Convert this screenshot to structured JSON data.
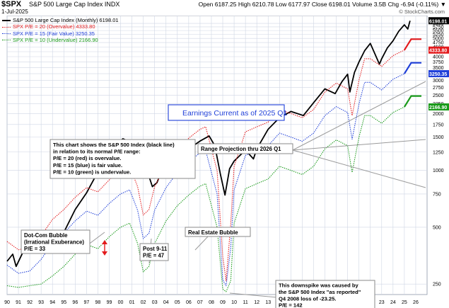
{
  "header": {
    "symbol": "$SPX",
    "index_name": "S&P 500 Large Cap Index INDX",
    "date": "1-Jul-2025",
    "ohlc": "Open 6187.25  High 6210.78  Low 6177.97  Close 6198.01  Volume 3.5B  Chg -6.94 (-0.11%) ▼",
    "copyright": "© StockCharts.com"
  },
  "legend": [
    {
      "text": "S&P 500 Large Cap Index (Monthly) 6198.01",
      "color": "#000000",
      "style": "solid"
    },
    {
      "text": "SPX P/E = 20 (Overvalue) 4333.80",
      "color": "#e31a1c",
      "style": "dotted"
    },
    {
      "text": "SPX P/E = 15 (Fair Value) 3250.35",
      "color": "#1f3fd8",
      "style": "dotted"
    },
    {
      "text": "SPX P/E = 10 (Undervalue) 2166.90",
      "color": "#1a9a1a",
      "style": "dotted"
    }
  ],
  "colors": {
    "price": "#000000",
    "overvalue": "#e31a1c",
    "fair": "#1f3fd8",
    "undervalue": "#1a9a1a",
    "grid": "#cfd6e4",
    "last_price_tag": "#000000",
    "red_tag": "#e31a1c",
    "blue_tag": "#1f3fd8",
    "green_tag": "#1a9a1a"
  },
  "chart_data": {
    "type": "line",
    "y_scale": "log",
    "ylim": [
      220,
      6600
    ],
    "xlim": [
      1990.0,
      2027.0
    ],
    "y_ticks": [
      250,
      500,
      750,
      1000,
      1250,
      1500,
      1750,
      2000,
      2250,
      2500,
      2750,
      3000,
      3250,
      3500,
      3750,
      4000,
      4250,
      4500,
      4750,
      5000,
      5250,
      5500,
      5750,
      6000
    ],
    "y_tick_labels": [
      "250",
      "500",
      "750",
      "1000",
      "1250",
      "1500",
      "1750",
      "2000",
      "2250",
      "2500",
      "2750",
      "3000",
      "3250",
      "3500",
      "3750",
      "4000",
      "4250",
      "4500",
      "4750",
      "5000",
      "5250",
      "5500",
      "5750",
      "6000"
    ],
    "x_ticks": [
      1990,
      1991,
      1992,
      1993,
      1994,
      1995,
      1996,
      1997,
      1998,
      1999,
      2000,
      2001,
      2002,
      2003,
      2004,
      2005,
      2006,
      2007,
      2008,
      2009,
      2010,
      2011,
      2012,
      2013,
      2014,
      2015,
      2016,
      2017,
      2018,
      2019,
      2020,
      2021,
      2022,
      2023,
      2024,
      2025,
      2026
    ],
    "x_tick_labels": [
      "90",
      "91",
      "92",
      "93",
      "94",
      "95",
      "96",
      "97",
      "98",
      "99",
      "00",
      "01",
      "02",
      "03",
      "04",
      "05",
      "06",
      "07",
      "08",
      "09",
      "10",
      "11",
      "12",
      "13",
      "14",
      "15",
      "16",
      "17",
      "18",
      "19",
      "20",
      "21",
      "22",
      "23",
      "24",
      "25",
      "26"
    ],
    "grid": true,
    "series": [
      {
        "name": "S&P 500 Large Cap Index (Monthly) 6198.01",
        "key": "price",
        "x": [
          1990.0,
          1990.5,
          1990.8,
          1991.5,
          1992.0,
          1993.0,
          1994.0,
          1995.0,
          1996.0,
          1997.0,
          1998.0,
          1998.6,
          1999.0,
          1999.5,
          2000.2,
          2000.7,
          2001.0,
          2001.7,
          2002.0,
          2002.5,
          2002.8,
          2003.2,
          2004.0,
          2005.0,
          2006.0,
          2007.0,
          2007.8,
          2008.3,
          2008.8,
          2009.2,
          2009.6,
          2010.0,
          2011.0,
          2011.7,
          2012.0,
          2013.0,
          2014.0,
          2015.0,
          2016.1,
          2017.0,
          2018.0,
          2018.9,
          2019.5,
          2020.0,
          2020.2,
          2020.6,
          2021.0,
          2021.5,
          2022.0,
          2022.8,
          2023.0,
          2023.5,
          2024.0,
          2024.5,
          2025.0,
          2025.3,
          2025.5
        ],
        "values": [
          330,
          360,
          310,
          380,
          410,
          450,
          460,
          470,
          620,
          760,
          980,
          1050,
          1230,
          1360,
          1470,
          1430,
          1330,
          1080,
          1140,
          930,
          820,
          860,
          1130,
          1180,
          1300,
          1430,
          1520,
          1350,
          950,
          740,
          1020,
          1120,
          1280,
          1150,
          1300,
          1650,
          1900,
          2050,
          1950,
          2280,
          2700,
          2550,
          2950,
          3230,
          2600,
          3300,
          3750,
          4300,
          4700,
          3650,
          3900,
          4450,
          4850,
          5450,
          5900,
          5600,
          6198
        ]
      },
      {
        "name": "SPX P/E = 20 (Overvalue) 4333.80",
        "key": "overvalue",
        "x": [
          1990.0,
          1991.0,
          1992.0,
          1993.0,
          1994.0,
          1995.0,
          1996.0,
          1997.0,
          1998.0,
          1999.0,
          2000.0,
          2000.8,
          2001.5,
          2002.0,
          2002.5,
          2003.0,
          2004.0,
          2005.0,
          2006.0,
          2007.0,
          2007.5,
          2008.0,
          2008.5,
          2009.0,
          2009.3,
          2009.7,
          2010.0,
          2011.0,
          2012.0,
          2013.0,
          2014.0,
          2015.0,
          2016.0,
          2017.0,
          2018.0,
          2019.0,
          2020.0,
          2020.4,
          2021.0,
          2021.5,
          2022.0,
          2023.0,
          2024.0,
          2025.0
        ],
        "values": [
          420,
          380,
          390,
          450,
          550,
          620,
          720,
          810,
          770,
          890,
          1000,
          1050,
          820,
          580,
          620,
          820,
          1080,
          1300,
          1480,
          1650,
          1700,
          1300,
          1000,
          350,
          260,
          520,
          1050,
          1600,
          1700,
          1800,
          2100,
          2000,
          1900,
          2100,
          2600,
          2900,
          2700,
          1950,
          3000,
          3900,
          3900,
          3550,
          4050,
          4333.8
        ]
      },
      {
        "name": "SPX P/E = 15 (Fair Value) 3250.35",
        "key": "fair",
        "x": [
          1990.0,
          1991.0,
          1992.0,
          1993.0,
          1994.0,
          1995.0,
          1996.0,
          1997.0,
          1998.0,
          1999.0,
          2000.0,
          2000.8,
          2001.5,
          2002.0,
          2002.5,
          2003.0,
          2004.0,
          2005.0,
          2006.0,
          2007.0,
          2007.5,
          2008.0,
          2008.5,
          2009.0,
          2009.3,
          2009.7,
          2010.0,
          2011.0,
          2012.0,
          2013.0,
          2014.0,
          2015.0,
          2016.0,
          2017.0,
          2018.0,
          2019.0,
          2020.0,
          2020.4,
          2021.0,
          2021.5,
          2022.0,
          2023.0,
          2024.0,
          2025.0
        ],
        "values": [
          315,
          285,
          293,
          338,
          413,
          465,
          540,
          608,
          578,
          668,
          750,
          788,
          615,
          435,
          465,
          615,
          810,
          975,
          1110,
          1238,
          1275,
          975,
          750,
          263,
          245,
          390,
          788,
          1200,
          1275,
          1350,
          1575,
          1500,
          1425,
          1575,
          1950,
          2175,
          2025,
          1463,
          2250,
          2925,
          2925,
          2663,
          3038,
          3250.35
        ]
      },
      {
        "name": "SPX P/E = 10 (Undervalue) 2166.90",
        "key": "undervalue",
        "x": [
          1990.0,
          1991.0,
          1992.0,
          1993.0,
          1994.0,
          1995.0,
          1996.0,
          1997.0,
          1998.0,
          1999.0,
          2000.0,
          2000.8,
          2001.5,
          2002.0,
          2002.5,
          2003.0,
          2004.0,
          2005.0,
          2006.0,
          2007.0,
          2007.5,
          2008.0,
          2008.5,
          2009.0,
          2009.3,
          2009.7,
          2010.0,
          2011.0,
          2012.0,
          2013.0,
          2014.0,
          2015.0,
          2016.0,
          2017.0,
          2018.0,
          2019.0,
          2020.0,
          2020.4,
          2021.0,
          2021.5,
          2022.0,
          2023.0,
          2024.0,
          2025.0
        ],
        "values": [
          245,
          240,
          245,
          250,
          276,
          310,
          360,
          405,
          385,
          445,
          500,
          525,
          410,
          290,
          310,
          410,
          540,
          650,
          740,
          825,
          850,
          650,
          500,
          235,
          228,
          260,
          525,
          800,
          850,
          900,
          1050,
          1000,
          950,
          1050,
          1300,
          1450,
          1350,
          975,
          1500,
          1950,
          1950,
          1775,
          2025,
          2166.9
        ]
      }
    ],
    "projections": [
      {
        "key": "overvalue",
        "x": [
          2025.0,
          2025.6,
          2025.6,
          2026.5
        ],
        "values": [
          4333.8,
          4950,
          4950,
          4950
        ]
      },
      {
        "key": "fair",
        "x": [
          2025.0,
          2025.6,
          2025.6,
          2026.5
        ],
        "values": [
          3250.35,
          3710,
          3710,
          3710
        ]
      },
      {
        "key": "undervalue",
        "x": [
          2025.0,
          2025.6,
          2025.6,
          2026.5
        ],
        "values": [
          2166.9,
          2475,
          2475,
          2475
        ]
      }
    ],
    "last_value_tags": [
      {
        "key": "price",
        "text": "6198.01",
        "value": 6198.01
      },
      {
        "key": "overvalue",
        "text": "4333.80",
        "value": 4333.8
      },
      {
        "key": "fair",
        "text": "3250.35",
        "value": 3250.35
      },
      {
        "key": "undervalue",
        "text": "2166.90",
        "value": 2166.9
      }
    ],
    "annotations": {
      "title_box": "Earnings Current as of 2025 Q1",
      "explain_box": [
        "This chart shows the S&P 500 Index (black line)",
        "in relation to its normal P/E range:",
        "P/E = 20 (red) is overvalue.",
        "P/E = 15 (blue) is fair value.",
        "P/E = 10 (green) is undervalue."
      ],
      "projection_box": "Range Projection thru 2026 Q1",
      "dotcom_box": [
        "Dot-Com Bubble",
        "(Irrational Exuberance)",
        "P/E = 33"
      ],
      "post911_box": [
        "Post 9-11",
        "P/E = 47"
      ],
      "realestate_box": "Real Estate Bubble",
      "downspike_box": [
        "This downspike was caused by",
        "the S&P 500 Index \"as reported\"",
        "Q4 2008 loss of -23.25.",
        "P/E = 142"
      ]
    }
  }
}
